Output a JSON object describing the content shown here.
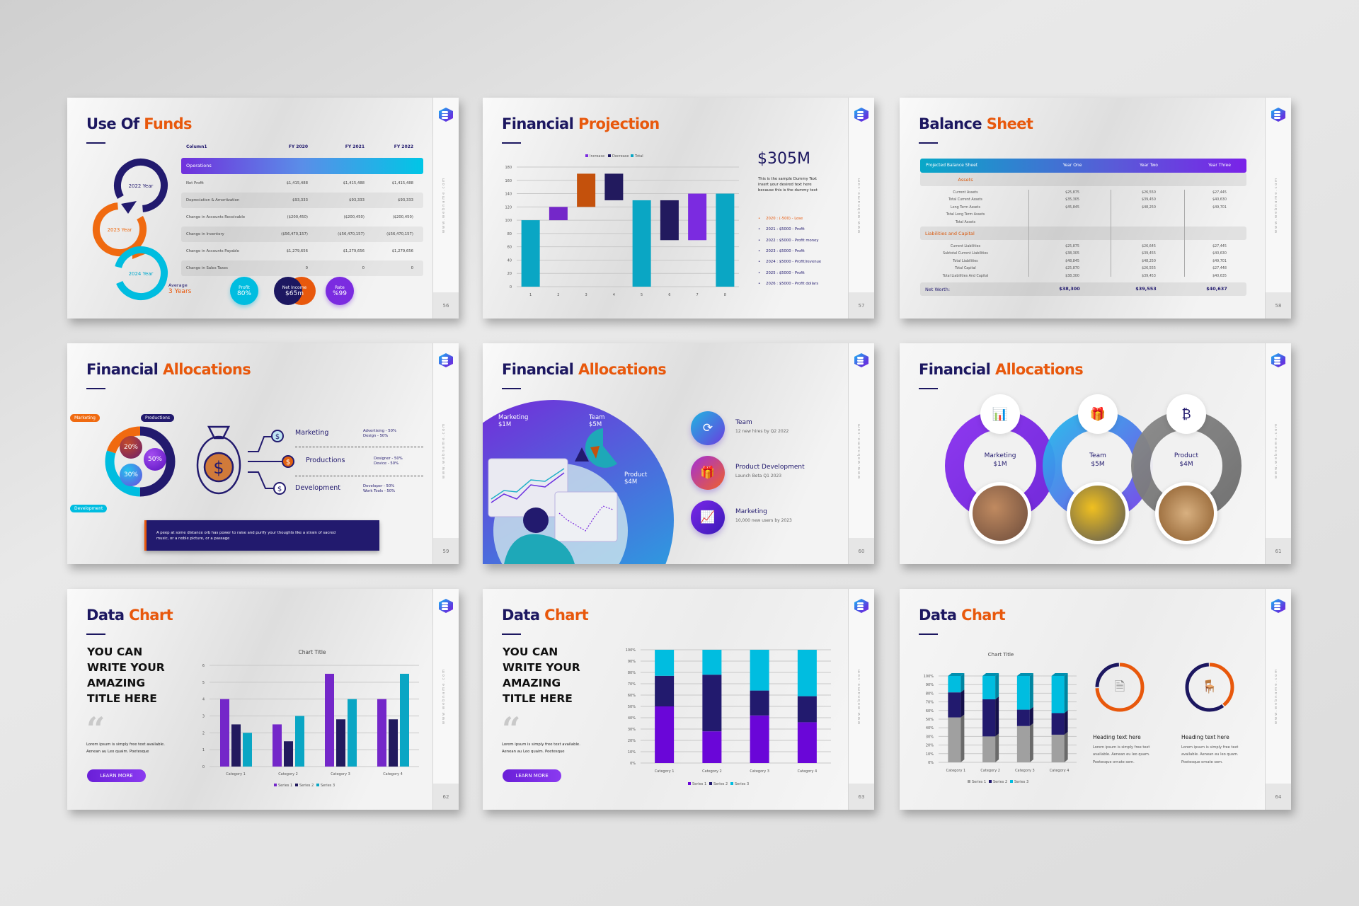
{
  "watermark": "www.webname.com",
  "colors": {
    "navy": "#1c1760",
    "orange": "#e8580c",
    "cyan": "#00bde0",
    "teal": "#0097b2",
    "purple": "#7b2be0",
    "gray": "#a0a0a0"
  },
  "slides": {
    "s56": {
      "title": [
        "Use Of",
        "Funds"
      ],
      "page": "56",
      "years": [
        "2022 Year",
        "2023 Year",
        "2024 Year"
      ],
      "table": {
        "headers": [
          "Column1",
          "FY 2020",
          "FY 2021",
          "FY 2022"
        ],
        "section": "Operations",
        "rows": [
          [
            "Net Profit",
            "$1,415,488",
            "$1,415,488",
            "$1,415,488"
          ],
          [
            "Depreciation & Amortization",
            "$93,333",
            "$93,333",
            "$93,333"
          ],
          [
            "Change in Accounts Receivable",
            "($200,450)",
            "($200,450)",
            "($200,450)"
          ],
          [
            "Change in Inventory",
            "($56,470,157)",
            "($56,470,157)",
            "($56,470,157)"
          ],
          [
            "Change in Accounts Payable",
            "$1,279,656",
            "$1,279,656",
            "$1,279,656"
          ],
          [
            "Change in Sales Taxes",
            "0",
            "0",
            "0"
          ]
        ]
      },
      "average_label": "Average",
      "average_value": "3 Years",
      "stats": [
        {
          "label": "Profit",
          "value": "80%"
        },
        {
          "label": "Net Income",
          "value": "$65m"
        },
        {
          "label": "Rate",
          "value": "%99"
        }
      ]
    },
    "s57": {
      "title": [
        "Financial",
        "Projection"
      ],
      "page": "57",
      "big_value": "$305M",
      "description": "This is the sample Dummy Text insert your desired text here because this is the dummy text",
      "bullets": [
        "2020 : (-500) - Lose",
        "2021 : $5000 - Profit",
        "2022 : $5000 - Profit money",
        "2023 : $5000 - Profit",
        "2024 : $5000 - Profit/revenue",
        "2025 : $5000 - Profit",
        "2026 : $5000 - Profit dollars"
      ]
    },
    "s58": {
      "title": [
        "Balance",
        "Sheet"
      ],
      "page": "58",
      "headers": [
        "Projected Balance Sheet",
        "Year One",
        "Year Two",
        "Year Three"
      ],
      "sections": [
        {
          "name": "Assets",
          "labels": [
            "Current Assets",
            "Total Current Assets",
            "Long Term Assets",
            "Total Long Term Assets",
            "Total Assets"
          ],
          "values": [
            [
              "$25,875",
              "$26,550",
              "$27,445"
            ],
            [
              "$35,305",
              "$39,450",
              "$40,630"
            ],
            [
              "$45,845",
              "$48,250",
              "$49,701"
            ],
            [],
            []
          ]
        },
        {
          "name": "Liabilities and Capital",
          "labels": [
            "Current Liabilities",
            "Subtotal Current Liabilities",
            "Total Liabilities",
            "Total Capital",
            "Total Liabilities And Capital"
          ],
          "values": [
            [
              "$25,875",
              "$26,645",
              "$27,445"
            ],
            [
              "$38,305",
              "$39,455",
              "$40,630"
            ],
            [
              "$48,845",
              "$48,250",
              "$49,701"
            ],
            [
              "$25,870",
              "$26,555",
              "$27,448"
            ],
            [
              "$38,300",
              "$39,453",
              "$40,635"
            ]
          ]
        }
      ],
      "net_worth": {
        "label": "Net Worth:",
        "values": [
          "$38,300",
          "$39,553",
          "$40,637"
        ]
      }
    },
    "s59": {
      "title": [
        "Financial",
        "Allocations"
      ],
      "page": "59",
      "tags": [
        "Marketing",
        "Productions",
        "Development"
      ],
      "donut": {
        "labels": [
          "Productions",
          "Development",
          "Marketing"
        ],
        "values": [
          50,
          30,
          20
        ],
        "percent_labels": [
          "20%",
          "50%",
          "30%"
        ]
      },
      "items": [
        {
          "name": "Marketing",
          "details": [
            "Advertising - 50%",
            "Design - 50%"
          ]
        },
        {
          "name": "Productions",
          "details": [
            "Designer - 50%",
            "Device - 50%"
          ]
        },
        {
          "name": "Development",
          "details": [
            "Developer - 50%",
            "Work Tools - 50%"
          ]
        }
      ],
      "quote": "A peep at some distance orb has power to raise and purify your thoughts like a strain of sacred music, or a noble picture, or a passage"
    },
    "s60": {
      "title": [
        "Financial",
        "Allocations"
      ],
      "page": "60",
      "labels": [
        {
          "name": "Marketing",
          "value": "$1M"
        },
        {
          "name": "Team",
          "value": "$5M"
        },
        {
          "name": "Product",
          "value": "$4M"
        }
      ],
      "items": [
        {
          "title": "Team",
          "text": "12 new hires by Q2 2022",
          "icon": "team-refresh-icon"
        },
        {
          "title": "Product Development",
          "text": "Launch Beta Q1 2023",
          "icon": "gift-box-icon"
        },
        {
          "title": "Marketing",
          "text": "10,000 new users by 2023",
          "icon": "analytics-dashboard-icon"
        }
      ]
    },
    "s61": {
      "title": [
        "Financial",
        "Allocations"
      ],
      "page": "61",
      "rings": [
        {
          "name": "Marketing",
          "value": "$1M",
          "icon": "chart-chat-icon"
        },
        {
          "name": "Team",
          "value": "$5M",
          "icon": "gift-box-icon"
        },
        {
          "name": "Product",
          "value": "$4M",
          "icon": "bitcoin-chart-icon"
        }
      ]
    },
    "s62": {
      "title": [
        "Data",
        "Chart"
      ],
      "page": "62",
      "headline": [
        "YOU CAN",
        "WRITE YOUR",
        "AMAZING",
        "TITLE HERE"
      ],
      "body": [
        "Lorem ipsum is simply free text available.",
        "Aenean au Leo quaim. Poetesque"
      ],
      "button": "LEARN MORE"
    },
    "s63": {
      "title": [
        "Data",
        "Chart"
      ],
      "page": "63",
      "headline": [
        "YOU CAN",
        "WRITE YOUR",
        "AMAZING",
        "TITLE HERE"
      ],
      "body": [
        "Lorem ipsum is simply free text available.",
        "Aenean au Leo quaim. Poetesque"
      ],
      "button": "LEARN MORE"
    },
    "s64": {
      "title": [
        "Data",
        "Chart"
      ],
      "page": "64",
      "cards": [
        {
          "heading": "Heading text here",
          "text": [
            "Lorem ipsum is simply free text",
            "available. Aenean eu leo quam.",
            "Poetesque ornate sem."
          ],
          "icon": "document-info-icon"
        },
        {
          "heading": "Heading text here",
          "text": [
            "Lorem ipsum is simply free text",
            "available. Aenean eu leo quam.",
            "Poetesque ornate sem."
          ],
          "icon": "office-desk-icon"
        }
      ]
    }
  },
  "chart_data": [
    {
      "type": "bar",
      "subtype": "waterfall",
      "categories": [
        "1",
        "2",
        "3",
        "4",
        "5",
        "6",
        "7",
        "8"
      ],
      "ranges": [
        [
          0,
          100
        ],
        [
          100,
          120
        ],
        [
          120,
          170
        ],
        [
          130,
          170
        ],
        [
          0,
          130
        ],
        [
          70,
          130
        ],
        [
          70,
          140
        ],
        [
          0,
          140
        ]
      ],
      "bar_colors": [
        "#0aa6c4",
        "#7427c9",
        "#c4510c",
        "#221a5e",
        "#0aa6c4",
        "#221a5e",
        "#7b2be0",
        "#0aa6c4"
      ],
      "legend": [
        {
          "name": "Increase",
          "color": "#7b2be0"
        },
        {
          "name": "Decrease",
          "color": "#1c1760"
        },
        {
          "name": "Total",
          "color": "#0aa6c4"
        }
      ],
      "ylim": [
        0,
        180
      ],
      "yticks": [
        "0",
        "20",
        "40",
        "60",
        "80",
        "100",
        "120",
        "140",
        "160",
        "180"
      ],
      "grid": true,
      "legend_position": "top"
    },
    {
      "type": "bar",
      "title": "Chart Title",
      "categories": [
        "Category 1",
        "Category 2",
        "Category 3",
        "Category 4"
      ],
      "series": [
        {
          "name": "Series 1",
          "values": [
            4,
            2.5,
            5.5,
            4
          ],
          "color": "#7427c9"
        },
        {
          "name": "Series 2",
          "values": [
            2.5,
            1.5,
            2.8,
            2.8
          ],
          "color": "#221a5e"
        },
        {
          "name": "Series 3",
          "values": [
            2,
            3,
            4,
            5.5
          ],
          "color": "#0aa6c4"
        }
      ],
      "ylim": [
        0,
        6
      ],
      "yticks": [
        "0",
        "1",
        "2",
        "3",
        "4",
        "5",
        "6"
      ],
      "grid": true,
      "legend_position": "bottom"
    },
    {
      "type": "bar",
      "subtype": "stacked-100",
      "categories": [
        "Category 1",
        "Category 2",
        "Category 3",
        "Category 4"
      ],
      "series": [
        {
          "name": "Series 1",
          "values": [
            50,
            28,
            42,
            36
          ],
          "color": "#6a06d8"
        },
        {
          "name": "Series 2",
          "values": [
            27,
            50,
            22,
            23
          ],
          "color": "#221a6e"
        },
        {
          "name": "Series 3",
          "values": [
            23,
            22,
            36,
            41
          ],
          "color": "#00bde0"
        }
      ],
      "ylim": [
        0,
        100
      ],
      "yticks": [
        "0%",
        "10%",
        "20%",
        "30%",
        "40%",
        "50%",
        "60%",
        "70%",
        "80%",
        "90%",
        "100%"
      ],
      "grid": true,
      "legend_position": "bottom"
    },
    {
      "type": "bar",
      "subtype": "stacked-100-3d",
      "title": "Chart Title",
      "categories": [
        "Category 1",
        "Category 2",
        "Category 3",
        "Category 4"
      ],
      "series": [
        {
          "name": "Series 1",
          "values": [
            52,
            30,
            42,
            32
          ],
          "color": "#a0a0a0"
        },
        {
          "name": "Series 2",
          "values": [
            29,
            43,
            19,
            25
          ],
          "color": "#221a6e"
        },
        {
          "name": "Series 3",
          "values": [
            19,
            27,
            39,
            43
          ],
          "color": "#00bde0"
        }
      ],
      "ylim": [
        0,
        100
      ],
      "yticks": [
        "0%",
        "10%",
        "20%",
        "30%",
        "40%",
        "50%",
        "60%",
        "70%",
        "80%",
        "90%",
        "100%"
      ],
      "grid": true,
      "legend_position": "bottom"
    },
    {
      "type": "pie",
      "subtype": "donut",
      "values": [
        75,
        25
      ],
      "colors": [
        "#e8580c",
        "#1c1760"
      ]
    },
    {
      "type": "pie",
      "subtype": "donut",
      "values": [
        40,
        60
      ],
      "colors": [
        "#e8580c",
        "#1c1760"
      ]
    }
  ]
}
